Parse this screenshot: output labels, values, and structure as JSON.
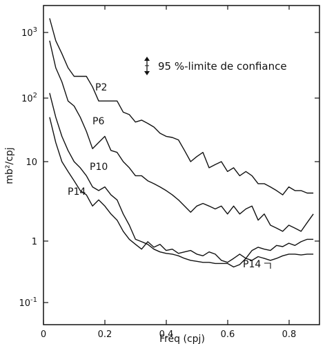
{
  "chart_data": {
    "type": "line",
    "title": "",
    "xlabel": "Fréq (cpj)",
    "ylabel": "mb²/cpj",
    "xlim": [
      0,
      0.9
    ],
    "ylim": [
      0.1,
      1000
    ],
    "yscale": "log",
    "grid": false,
    "x_ticks": [
      "0",
      "0.2",
      "0.4",
      "0.6",
      "0.8"
    ],
    "y_ticks": [
      {
        "base": "10",
        "exp": "-1"
      },
      {
        "base": "1",
        "exp": ""
      },
      {
        "base": "10",
        "exp": ""
      },
      {
        "base": "10",
        "exp": "2"
      },
      {
        "base": "10",
        "exp": "3"
      }
    ],
    "annotation": "95 %-limite de confiance",
    "series": [
      {
        "name": "P2",
        "x": [
          0.02,
          0.04,
          0.06,
          0.08,
          0.1,
          0.12,
          0.14,
          0.16,
          0.18,
          0.2,
          0.22,
          0.24,
          0.26,
          0.28,
          0.3,
          0.32,
          0.34,
          0.36,
          0.38,
          0.4,
          0.42,
          0.44,
          0.46,
          0.48,
          0.5,
          0.52,
          0.54,
          0.56,
          0.58,
          0.6,
          0.62,
          0.64,
          0.66,
          0.68,
          0.7,
          0.72,
          0.74,
          0.76,
          0.78,
          0.8,
          0.82,
          0.84,
          0.86,
          0.88
        ],
        "y": [
          1800,
          800,
          500,
          300,
          220,
          220,
          220,
          150,
          90,
          90,
          90,
          90,
          60,
          55,
          42,
          45,
          40,
          35,
          28,
          25,
          24,
          22,
          15,
          10,
          12,
          14,
          8,
          9,
          10,
          7,
          8,
          6,
          7,
          6,
          4.5,
          4.5,
          4,
          3.5,
          3,
          4,
          3.5,
          3.5,
          3.2,
          3.2
        ]
      },
      {
        "name": "P6",
        "x": [
          0.02,
          0.04,
          0.06,
          0.08,
          0.1,
          0.12,
          0.14,
          0.16,
          0.18,
          0.2,
          0.22,
          0.24,
          0.26,
          0.28,
          0.3,
          0.32,
          0.34,
          0.36,
          0.38,
          0.4,
          0.42,
          0.44,
          0.46,
          0.48,
          0.5,
          0.52,
          0.54,
          0.56,
          0.58,
          0.6,
          0.62,
          0.64,
          0.66,
          0.68,
          0.7,
          0.72,
          0.74,
          0.76,
          0.78,
          0.8,
          0.82,
          0.84,
          0.86,
          0.88
        ],
        "y": [
          800,
          300,
          180,
          90,
          75,
          50,
          30,
          16,
          20,
          25,
          15,
          14,
          10,
          8,
          6,
          6,
          5,
          4.5,
          4,
          3.5,
          3,
          2.5,
          2,
          1.6,
          2,
          2.2,
          2,
          1.8,
          2,
          1.5,
          2,
          1.5,
          1.8,
          2,
          1.2,
          1.5,
          1,
          0.9,
          0.8,
          1.0,
          0.9,
          0.8,
          1.1,
          1.5
        ]
      },
      {
        "name": "P10",
        "x": [
          0.02,
          0.04,
          0.06,
          0.08,
          0.1,
          0.12,
          0.14,
          0.16,
          0.18,
          0.2,
          0.22,
          0.24,
          0.26,
          0.28,
          0.3,
          0.32,
          0.34,
          0.36,
          0.38,
          0.4,
          0.42,
          0.44,
          0.46,
          0.48,
          0.5,
          0.52,
          0.54,
          0.56,
          0.58,
          0.6,
          0.62,
          0.64,
          0.66,
          0.68,
          0.7,
          0.72,
          0.74,
          0.76,
          0.78,
          0.8,
          0.82,
          0.84,
          0.86,
          0.88
        ],
        "y": [
          120,
          50,
          25,
          15,
          10,
          8,
          6,
          4,
          3.5,
          4,
          3,
          2.5,
          1.5,
          1.0,
          0.6,
          0.55,
          0.5,
          0.42,
          0.38,
          0.36,
          0.35,
          0.33,
          0.3,
          0.28,
          0.27,
          0.26,
          0.26,
          0.25,
          0.25,
          0.25,
          0.22,
          0.24,
          0.3,
          0.28,
          0.32,
          0.3,
          0.28,
          0.3,
          0.33,
          0.35,
          0.35,
          0.34,
          0.35,
          0.35
        ]
      },
      {
        "name": "P14",
        "x": [
          0.02,
          0.04,
          0.06,
          0.08,
          0.1,
          0.12,
          0.14,
          0.16,
          0.18,
          0.2,
          0.22,
          0.24,
          0.26,
          0.28,
          0.3,
          0.32,
          0.34,
          0.36,
          0.38,
          0.4,
          0.42,
          0.44,
          0.46,
          0.48,
          0.5,
          0.52,
          0.54,
          0.56,
          0.58,
          0.6,
          0.62,
          0.64,
          0.66,
          0.68,
          0.7,
          0.72,
          0.74,
          0.76,
          0.78,
          0.8,
          0.82,
          0.84,
          0.86,
          0.88
        ],
        "y": [
          50,
          20,
          10,
          7,
          5,
          3.5,
          3,
          2,
          2.5,
          2,
          1.5,
          1.2,
          0.8,
          0.6,
          0.5,
          0.42,
          0.55,
          0.45,
          0.5,
          0.4,
          0.42,
          0.36,
          0.38,
          0.4,
          0.35,
          0.33,
          0.38,
          0.35,
          0.28,
          0.26,
          0.3,
          0.35,
          0.3,
          0.4,
          0.45,
          0.42,
          0.4,
          0.48,
          0.46,
          0.52,
          0.48,
          0.55,
          0.6,
          0.6
        ]
      }
    ],
    "series_label_text": [
      "P2",
      "P6",
      "P10",
      "P14"
    ],
    "extra_label": "P14"
  },
  "colors": {
    "line": "#111111",
    "axis": "#111111",
    "background": "#ffffff"
  }
}
